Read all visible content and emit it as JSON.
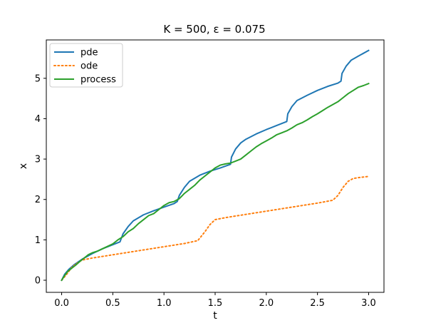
{
  "chart_data": {
    "type": "line",
    "title": "K = 500, ε = 0.075",
    "xlabel": "t",
    "ylabel": "x",
    "xlim": [
      -0.15,
      3.15
    ],
    "ylim": [
      -0.3,
      5.95
    ],
    "xticks": [
      0.0,
      0.5,
      1.0,
      1.5,
      2.0,
      2.5,
      3.0
    ],
    "xtick_labels": [
      "0.0",
      "0.5",
      "1.0",
      "1.5",
      "2.0",
      "2.5",
      "3.0"
    ],
    "yticks": [
      0,
      1,
      2,
      3,
      4,
      5
    ],
    "ytick_labels": [
      "0",
      "1",
      "2",
      "3",
      "4",
      "5"
    ],
    "grid": false,
    "legend_position": "top-left",
    "series": [
      {
        "name": "pde",
        "color": "#1f77b4",
        "style": "solid",
        "points": [
          [
            0,
            0
          ],
          [
            0.03,
            0.15
          ],
          [
            0.07,
            0.27
          ],
          [
            0.12,
            0.38
          ],
          [
            0.2,
            0.52
          ],
          [
            0.3,
            0.66
          ],
          [
            0.4,
            0.78
          ],
          [
            0.5,
            0.88
          ],
          [
            0.57,
            0.95
          ],
          [
            0.6,
            1.15
          ],
          [
            0.65,
            1.33
          ],
          [
            0.7,
            1.47
          ],
          [
            0.8,
            1.62
          ],
          [
            0.9,
            1.72
          ],
          [
            1.0,
            1.81
          ],
          [
            1.1,
            1.9
          ],
          [
            1.13,
            1.95
          ],
          [
            1.15,
            2.1
          ],
          [
            1.2,
            2.3
          ],
          [
            1.25,
            2.45
          ],
          [
            1.35,
            2.6
          ],
          [
            1.45,
            2.7
          ],
          [
            1.55,
            2.78
          ],
          [
            1.65,
            2.87
          ],
          [
            1.66,
            3.05
          ],
          [
            1.7,
            3.25
          ],
          [
            1.75,
            3.4
          ],
          [
            1.8,
            3.49
          ],
          [
            1.9,
            3.62
          ],
          [
            2.0,
            3.73
          ],
          [
            2.1,
            3.83
          ],
          [
            2.2,
            3.93
          ],
          [
            2.21,
            4.12
          ],
          [
            2.25,
            4.3
          ],
          [
            2.3,
            4.45
          ],
          [
            2.4,
            4.58
          ],
          [
            2.5,
            4.7
          ],
          [
            2.6,
            4.8
          ],
          [
            2.7,
            4.88
          ],
          [
            2.73,
            4.93
          ],
          [
            2.74,
            5.12
          ],
          [
            2.78,
            5.3
          ],
          [
            2.83,
            5.45
          ],
          [
            2.9,
            5.55
          ],
          [
            3.0,
            5.69
          ]
        ]
      },
      {
        "name": "ode",
        "color": "#ff7f0e",
        "style": "dotted",
        "points": [
          [
            0,
            0
          ],
          [
            0.05,
            0.15
          ],
          [
            0.1,
            0.32
          ],
          [
            0.15,
            0.42
          ],
          [
            0.2,
            0.5
          ],
          [
            0.3,
            0.55
          ],
          [
            0.5,
            0.63
          ],
          [
            0.8,
            0.75
          ],
          [
            1.0,
            0.83
          ],
          [
            1.2,
            0.91
          ],
          [
            1.33,
            0.98
          ],
          [
            1.4,
            1.2
          ],
          [
            1.45,
            1.38
          ],
          [
            1.5,
            1.5
          ],
          [
            1.6,
            1.55
          ],
          [
            1.8,
            1.63
          ],
          [
            2.0,
            1.71
          ],
          [
            2.3,
            1.83
          ],
          [
            2.5,
            1.91
          ],
          [
            2.65,
            1.98
          ],
          [
            2.7,
            2.1
          ],
          [
            2.75,
            2.3
          ],
          [
            2.8,
            2.45
          ],
          [
            2.85,
            2.52
          ],
          [
            2.9,
            2.54
          ],
          [
            3.0,
            2.57
          ]
        ]
      },
      {
        "name": "process",
        "color": "#2ca02c",
        "style": "solid",
        "points": [
          [
            0,
            0
          ],
          [
            0.03,
            0.12
          ],
          [
            0.06,
            0.22
          ],
          [
            0.1,
            0.3
          ],
          [
            0.14,
            0.38
          ],
          [
            0.18,
            0.47
          ],
          [
            0.22,
            0.55
          ],
          [
            0.26,
            0.63
          ],
          [
            0.3,
            0.68
          ],
          [
            0.35,
            0.72
          ],
          [
            0.4,
            0.78
          ],
          [
            0.45,
            0.84
          ],
          [
            0.5,
            0.9
          ],
          [
            0.55,
            1.0
          ],
          [
            0.6,
            1.08
          ],
          [
            0.65,
            1.2
          ],
          [
            0.7,
            1.28
          ],
          [
            0.75,
            1.4
          ],
          [
            0.8,
            1.5
          ],
          [
            0.85,
            1.6
          ],
          [
            0.9,
            1.65
          ],
          [
            0.95,
            1.75
          ],
          [
            1.0,
            1.85
          ],
          [
            1.05,
            1.92
          ],
          [
            1.1,
            1.95
          ],
          [
            1.15,
            2.02
          ],
          [
            1.2,
            2.15
          ],
          [
            1.25,
            2.25
          ],
          [
            1.3,
            2.35
          ],
          [
            1.35,
            2.48
          ],
          [
            1.4,
            2.58
          ],
          [
            1.45,
            2.68
          ],
          [
            1.5,
            2.78
          ],
          [
            1.55,
            2.85
          ],
          [
            1.6,
            2.88
          ],
          [
            1.65,
            2.9
          ],
          [
            1.7,
            2.95
          ],
          [
            1.75,
            3.0
          ],
          [
            1.8,
            3.1
          ],
          [
            1.85,
            3.2
          ],
          [
            1.9,
            3.3
          ],
          [
            1.95,
            3.38
          ],
          [
            2.0,
            3.45
          ],
          [
            2.05,
            3.52
          ],
          [
            2.1,
            3.6
          ],
          [
            2.15,
            3.65
          ],
          [
            2.2,
            3.7
          ],
          [
            2.25,
            3.77
          ],
          [
            2.3,
            3.85
          ],
          [
            2.35,
            3.9
          ],
          [
            2.4,
            3.97
          ],
          [
            2.45,
            4.05
          ],
          [
            2.5,
            4.12
          ],
          [
            2.55,
            4.2
          ],
          [
            2.6,
            4.28
          ],
          [
            2.65,
            4.35
          ],
          [
            2.7,
            4.42
          ],
          [
            2.75,
            4.52
          ],
          [
            2.8,
            4.62
          ],
          [
            2.85,
            4.7
          ],
          [
            2.9,
            4.78
          ],
          [
            2.95,
            4.82
          ],
          [
            3.0,
            4.87
          ]
        ]
      }
    ]
  }
}
